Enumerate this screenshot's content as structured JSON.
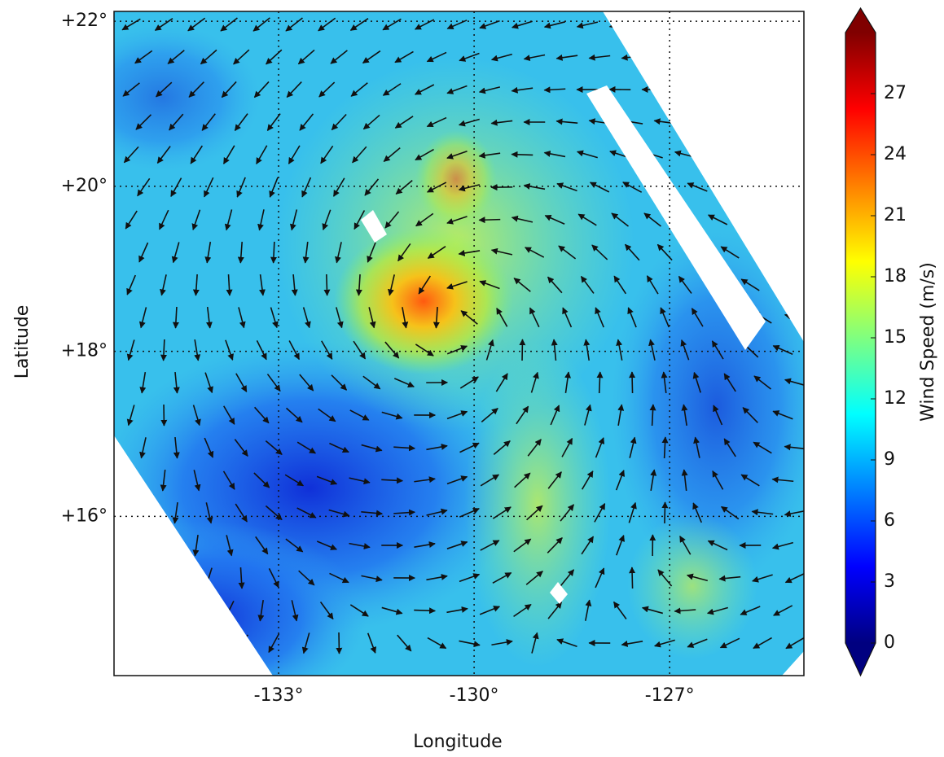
{
  "chart_data": {
    "type": "quiver",
    "xlabel": "Longitude",
    "ylabel": "Latitude",
    "xlim": [
      -135.525,
      -124.94
    ],
    "ylim": [
      14.07,
      22.12
    ],
    "xticks": [
      {
        "value": -133,
        "label": "-133°"
      },
      {
        "value": -130,
        "label": "-130°"
      },
      {
        "value": -127,
        "label": "-127°"
      }
    ],
    "yticks": [
      {
        "value": 16,
        "label": "+16°"
      },
      {
        "value": 18,
        "label": "+18°"
      },
      {
        "value": 20,
        "label": "+20°"
      },
      {
        "value": 22,
        "label": "+22°"
      }
    ],
    "grid": true,
    "colorbar": {
      "label": "Wind Speed (m/s)",
      "lim": [
        0,
        30
      ],
      "ticks": [
        0,
        3,
        6,
        9,
        12,
        15,
        18,
        21,
        24,
        27
      ],
      "colormap": "jet"
    }
  }
}
